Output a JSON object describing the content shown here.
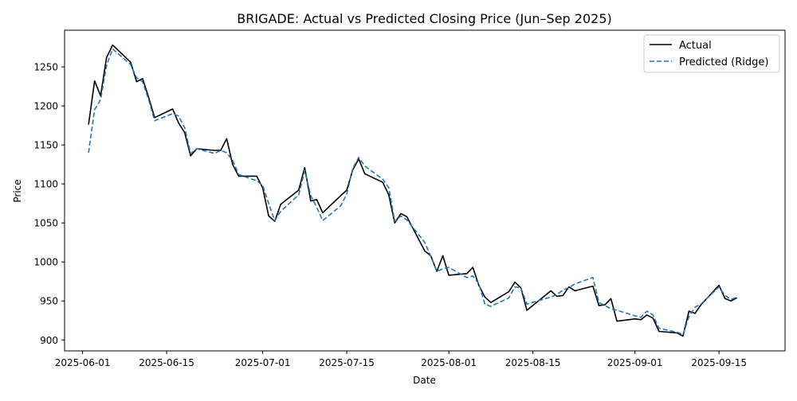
{
  "chart_data": {
    "type": "line",
    "title": "BRIGADE: Actual vs Predicted Closing Price (Jun–Sep 2025)",
    "xlabel": "Date",
    "ylabel": "Price",
    "x_range": [
      "2025-05-29",
      "2025-09-26"
    ],
    "ylim": [
      886,
      1297
    ],
    "x_ticks": [
      {
        "date": "2025-06-01",
        "label": "2025-06-01"
      },
      {
        "date": "2025-06-15",
        "label": "2025-06-15"
      },
      {
        "date": "2025-07-01",
        "label": "2025-07-01"
      },
      {
        "date": "2025-07-15",
        "label": "2025-07-15"
      },
      {
        "date": "2025-08-01",
        "label": "2025-08-01"
      },
      {
        "date": "2025-08-15",
        "label": "2025-08-15"
      },
      {
        "date": "2025-09-01",
        "label": "2025-09-01"
      },
      {
        "date": "2025-09-15",
        "label": "2025-09-15"
      }
    ],
    "y_ticks": [
      900,
      950,
      1000,
      1050,
      1100,
      1150,
      1200,
      1250
    ],
    "grid": false,
    "legend_position": "top-right",
    "series": [
      {
        "name": "Actual",
        "color": "#000000",
        "dash": "solid",
        "points": [
          [
            "2025-06-02",
            1176
          ],
          [
            "2025-06-03",
            1232
          ],
          [
            "2025-06-04",
            1213
          ],
          [
            "2025-06-05",
            1262
          ],
          [
            "2025-06-06",
            1278
          ],
          [
            "2025-06-09",
            1256
          ],
          [
            "2025-06-10",
            1231
          ],
          [
            "2025-06-11",
            1235
          ],
          [
            "2025-06-12",
            1211
          ],
          [
            "2025-06-13",
            1185
          ],
          [
            "2025-06-16",
            1196
          ],
          [
            "2025-06-17",
            1178
          ],
          [
            "2025-06-18",
            1166
          ],
          [
            "2025-06-19",
            1136
          ],
          [
            "2025-06-20",
            1145
          ],
          [
            "2025-06-23",
            1143
          ],
          [
            "2025-06-24",
            1143
          ],
          [
            "2025-06-25",
            1158
          ],
          [
            "2025-06-26",
            1125
          ],
          [
            "2025-06-27",
            1110
          ],
          [
            "2025-06-30",
            1110
          ],
          [
            "2025-07-01",
            1095
          ],
          [
            "2025-07-02",
            1059
          ],
          [
            "2025-07-03",
            1052
          ],
          [
            "2025-07-04",
            1074
          ],
          [
            "2025-07-07",
            1092
          ],
          [
            "2025-07-08",
            1121
          ],
          [
            "2025-07-09",
            1078
          ],
          [
            "2025-07-10",
            1080
          ],
          [
            "2025-07-11",
            1063
          ],
          [
            "2025-07-14",
            1085
          ],
          [
            "2025-07-15",
            1092
          ],
          [
            "2025-07-16",
            1118
          ],
          [
            "2025-07-17",
            1132
          ],
          [
            "2025-07-18",
            1113
          ],
          [
            "2025-07-21",
            1102
          ],
          [
            "2025-07-22",
            1086
          ],
          [
            "2025-07-23",
            1050
          ],
          [
            "2025-07-24",
            1062
          ],
          [
            "2025-07-25",
            1058
          ],
          [
            "2025-07-28",
            1014
          ],
          [
            "2025-07-29",
            1008
          ],
          [
            "2025-07-30",
            988
          ],
          [
            "2025-07-31",
            1008
          ],
          [
            "2025-08-01",
            983
          ],
          [
            "2025-08-04",
            985
          ],
          [
            "2025-08-05",
            993
          ],
          [
            "2025-08-06",
            970
          ],
          [
            "2025-08-07",
            955
          ],
          [
            "2025-08-08",
            948
          ],
          [
            "2025-08-11",
            962
          ],
          [
            "2025-08-12",
            974
          ],
          [
            "2025-08-13",
            967
          ],
          [
            "2025-08-14",
            938
          ],
          [
            "2025-08-18",
            963
          ],
          [
            "2025-08-19",
            956
          ],
          [
            "2025-08-20",
            957
          ],
          [
            "2025-08-21",
            968
          ],
          [
            "2025-08-22",
            963
          ],
          [
            "2025-08-25",
            969
          ],
          [
            "2025-08-26",
            944
          ],
          [
            "2025-08-27",
            945
          ],
          [
            "2025-08-28",
            953
          ],
          [
            "2025-08-29",
            924
          ],
          [
            "2025-09-01",
            927
          ],
          [
            "2025-09-02",
            926
          ],
          [
            "2025-09-03",
            932
          ],
          [
            "2025-09-04",
            928
          ],
          [
            "2025-09-05",
            911
          ],
          [
            "2025-09-08",
            909
          ],
          [
            "2025-09-09",
            905
          ],
          [
            "2025-09-10",
            937
          ],
          [
            "2025-09-11",
            934
          ],
          [
            "2025-09-12",
            945
          ],
          [
            "2025-09-15",
            970
          ],
          [
            "2025-09-16",
            953
          ],
          [
            "2025-09-17",
            950
          ],
          [
            "2025-09-18",
            954
          ]
        ]
      },
      {
        "name": "Predicted (Ridge)",
        "color": "#1f77b4",
        "dash": "dashed",
        "points": [
          [
            "2025-06-02",
            1140
          ],
          [
            "2025-06-03",
            1195
          ],
          [
            "2025-06-04",
            1208
          ],
          [
            "2025-06-05",
            1252
          ],
          [
            "2025-06-06",
            1273
          ],
          [
            "2025-06-09",
            1253
          ],
          [
            "2025-06-10",
            1236
          ],
          [
            "2025-06-11",
            1231
          ],
          [
            "2025-06-12",
            1208
          ],
          [
            "2025-06-13",
            1181
          ],
          [
            "2025-06-16",
            1190
          ],
          [
            "2025-06-17",
            1187
          ],
          [
            "2025-06-18",
            1172
          ],
          [
            "2025-06-19",
            1139
          ],
          [
            "2025-06-20",
            1145
          ],
          [
            "2025-06-23",
            1139
          ],
          [
            "2025-06-24",
            1143
          ],
          [
            "2025-06-25",
            1140
          ],
          [
            "2025-06-26",
            1130
          ],
          [
            "2025-06-27",
            1112
          ],
          [
            "2025-06-30",
            1104
          ],
          [
            "2025-07-01",
            1098
          ],
          [
            "2025-07-02",
            1075
          ],
          [
            "2025-07-03",
            1053
          ],
          [
            "2025-07-04",
            1065
          ],
          [
            "2025-07-07",
            1086
          ],
          [
            "2025-07-08",
            1117
          ],
          [
            "2025-07-09",
            1085
          ],
          [
            "2025-07-10",
            1070
          ],
          [
            "2025-07-11",
            1053
          ],
          [
            "2025-07-14",
            1072
          ],
          [
            "2025-07-15",
            1087
          ],
          [
            "2025-07-16",
            1120
          ],
          [
            "2025-07-17",
            1134
          ],
          [
            "2025-07-18",
            1123
          ],
          [
            "2025-07-21",
            1106
          ],
          [
            "2025-07-22",
            1095
          ],
          [
            "2025-07-23",
            1052
          ],
          [
            "2025-07-24",
            1059
          ],
          [
            "2025-07-25",
            1054
          ],
          [
            "2025-07-28",
            1025
          ],
          [
            "2025-07-29",
            1007
          ],
          [
            "2025-07-30",
            988
          ],
          [
            "2025-07-31",
            991
          ],
          [
            "2025-08-01",
            993
          ],
          [
            "2025-08-04",
            980
          ],
          [
            "2025-08-05",
            982
          ],
          [
            "2025-08-06",
            972
          ],
          [
            "2025-08-07",
            946
          ],
          [
            "2025-08-08",
            943
          ],
          [
            "2025-08-11",
            954
          ],
          [
            "2025-08-12",
            968
          ],
          [
            "2025-08-13",
            967
          ],
          [
            "2025-08-14",
            946
          ],
          [
            "2025-08-18",
            955
          ],
          [
            "2025-08-19",
            958
          ],
          [
            "2025-08-20",
            964
          ],
          [
            "2025-08-21",
            967
          ],
          [
            "2025-08-22",
            972
          ],
          [
            "2025-08-25",
            980
          ],
          [
            "2025-08-26",
            948
          ],
          [
            "2025-08-27",
            944
          ],
          [
            "2025-08-28",
            940
          ],
          [
            "2025-08-29",
            938
          ],
          [
            "2025-09-01",
            931
          ],
          [
            "2025-09-02",
            929
          ],
          [
            "2025-09-03",
            937
          ],
          [
            "2025-09-04",
            932
          ],
          [
            "2025-09-05",
            915
          ],
          [
            "2025-09-08",
            910
          ],
          [
            "2025-09-09",
            907
          ],
          [
            "2025-09-10",
            930
          ],
          [
            "2025-09-11",
            942
          ],
          [
            "2025-09-12",
            946
          ],
          [
            "2025-09-15",
            968
          ],
          [
            "2025-09-16",
            957
          ],
          [
            "2025-09-17",
            952
          ],
          [
            "2025-09-18",
            955
          ]
        ]
      }
    ]
  }
}
